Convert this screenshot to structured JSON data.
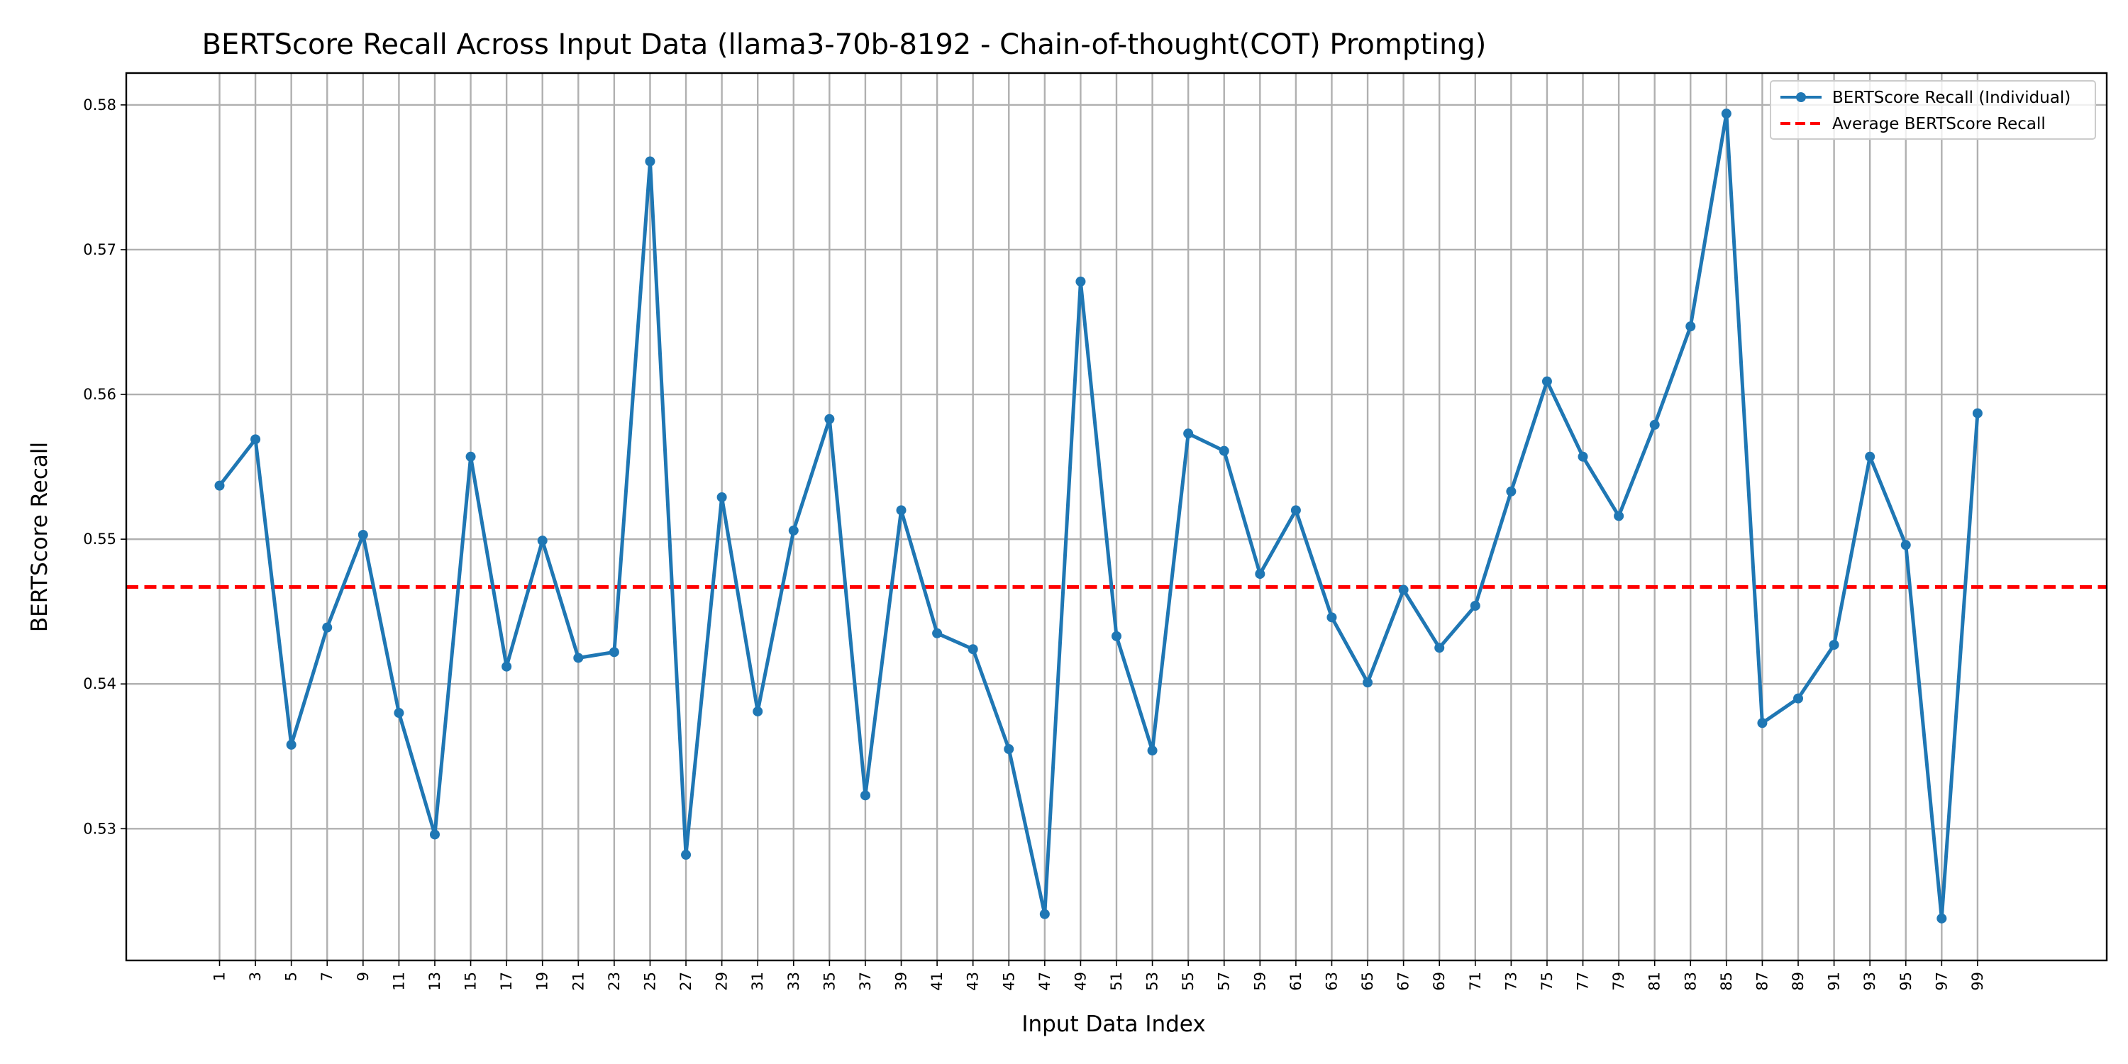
{
  "chart_data": {
    "type": "line",
    "title": "BERTScore Recall Across Input Data (llama3-70b-8192 - Chain-of-thought(COT) Prompting)",
    "xlabel": "Input Data Index",
    "ylabel": "BERTScore Recall",
    "x": [
      1,
      3,
      5,
      7,
      9,
      11,
      13,
      15,
      17,
      19,
      21,
      23,
      25,
      27,
      29,
      31,
      33,
      35,
      37,
      39,
      41,
      43,
      45,
      47,
      49,
      51,
      53,
      55,
      57,
      59,
      61,
      63,
      65,
      67,
      69,
      71,
      73,
      75,
      77,
      79,
      81,
      83,
      85,
      87,
      89,
      91,
      93,
      95,
      97,
      99
    ],
    "xticks": [
      "1",
      "3",
      "5",
      "7",
      "9",
      "11",
      "13",
      "15",
      "17",
      "19",
      "21",
      "23",
      "25",
      "27",
      "29",
      "31",
      "33",
      "35",
      "37",
      "39",
      "41",
      "43",
      "45",
      "47",
      "49",
      "51",
      "53",
      "55",
      "57",
      "59",
      "61",
      "63",
      "65",
      "67",
      "69",
      "71",
      "73",
      "75",
      "77",
      "79",
      "81",
      "83",
      "85",
      "87",
      "89",
      "91",
      "93",
      "95",
      "97",
      "99"
    ],
    "xlim": [
      -4.2,
      106.2
    ],
    "ylim": [
      0.5209,
      0.5822
    ],
    "yticks": [
      0.53,
      0.54,
      0.55,
      0.56,
      0.57,
      0.58
    ],
    "yticklabels": [
      "0.53",
      "0.54",
      "0.55",
      "0.56",
      "0.57",
      "0.58"
    ],
    "grid": true,
    "legend_position": "top-right",
    "series": [
      {
        "name": "BERTScore Recall (Individual)",
        "color": "#1f77b4",
        "style": "solid-with-markers",
        "values": [
          0.5537,
          0.5569,
          0.5358,
          0.5439,
          0.5503,
          0.538,
          0.5296,
          0.5557,
          0.5412,
          0.5499,
          0.5418,
          0.5422,
          0.5761,
          0.5282,
          0.5529,
          0.5381,
          0.5506,
          0.5583,
          0.5323,
          0.552,
          0.5435,
          0.5424,
          0.5355,
          0.5241,
          0.5678,
          0.5433,
          0.5354,
          0.5573,
          0.5561,
          0.5476,
          0.552,
          0.5446,
          0.5401,
          0.5465,
          0.5425,
          0.5454,
          0.5533,
          0.5609,
          0.5557,
          0.5516,
          0.5579,
          0.5647,
          0.5794,
          0.5373,
          0.539,
          0.5427,
          0.5557,
          0.5496,
          0.5238,
          0.5587
        ]
      },
      {
        "name": "Average BERTScore Recall",
        "color": "#ff0000",
        "style": "dashed",
        "value": 0.5467
      }
    ]
  }
}
